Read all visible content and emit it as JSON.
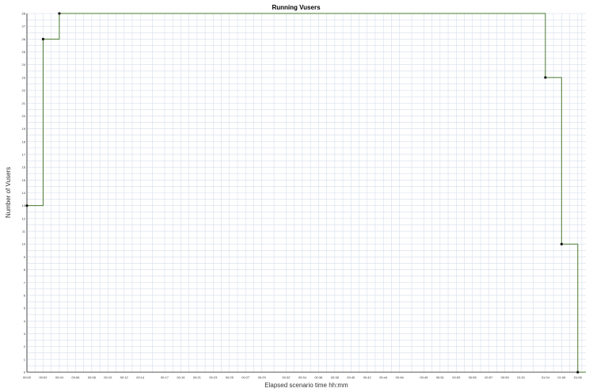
{
  "chart_data": {
    "type": "line",
    "step": true,
    "title": "Running Vusers",
    "xlabel": "Elapsed scenario time hh:mm",
    "ylabel": "Number of Vusers",
    "grid": true,
    "legend": "none",
    "colors": {
      "series": "#4a7a33",
      "grid": "#d5deeb",
      "marker": "#111111"
    },
    "x_ticks": [
      "00:00",
      "00:02",
      "00:04",
      "00:06",
      "00:08",
      "00:10",
      "00:12",
      "00:14",
      "00:17",
      "00:19",
      "00:21",
      "00:23",
      "00:25",
      "00:27",
      "00:29",
      "00:32",
      "00:34",
      "00:36",
      "00:38",
      "00:40",
      "00:42",
      "00:44",
      "00:46",
      "00:49",
      "00:51",
      "00:53",
      "00:55",
      "00:57",
      "00:59",
      "01:01",
      "01:04",
      "01:06",
      "01:08"
    ],
    "ylim": [
      0,
      28
    ],
    "y_ticks": [
      0,
      1,
      2,
      3,
      4,
      5,
      6,
      7,
      8,
      9,
      10,
      11,
      12,
      13,
      14,
      15,
      16,
      17,
      18,
      19,
      20,
      21,
      22,
      23,
      24,
      25,
      26,
      27,
      28
    ],
    "series": [
      {
        "values": [
          {
            "x": "00:00",
            "y": 13
          },
          {
            "x": "00:02",
            "y": 26
          },
          {
            "x": "00:04",
            "y": 28
          },
          {
            "x": "01:04",
            "y": 23
          },
          {
            "x": "01:06",
            "y": 10
          },
          {
            "x": "01:08",
            "y": 0
          },
          {
            "x": "01:09",
            "y": 0
          }
        ]
      }
    ]
  }
}
